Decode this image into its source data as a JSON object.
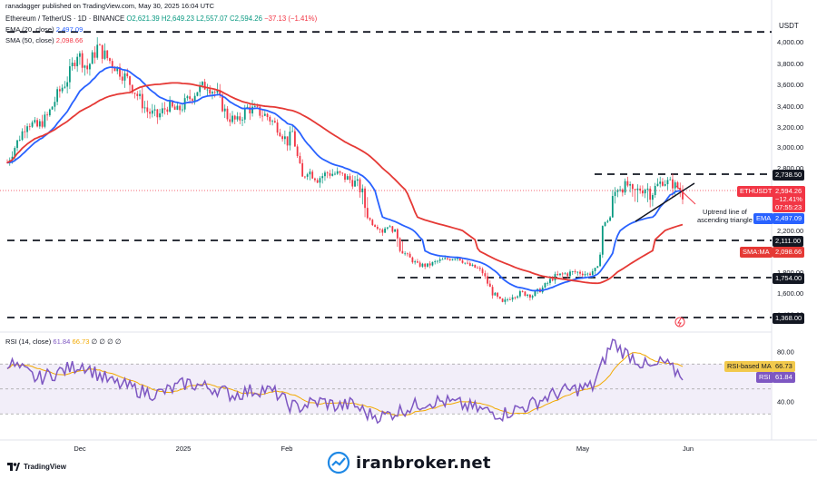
{
  "header": {
    "published": "ranadagger published on TradingView.com, May 30, 2025 16:04 UTC",
    "symbol": "Ethereum / TetherUS · 1D · BINANCE",
    "ohlc": {
      "o": "O2,621.39",
      "h": "H2,649.23",
      "l": "L2,557.07",
      "c": "C2,594.26",
      "chg": "−37.13 (−1.41%)"
    },
    "ema_label": "EMA (20, close)",
    "ema_value": "2,497.09",
    "sma_label": "SMA (50, close)",
    "sma_value": "2,098.66",
    "rsi_label": "RSI (14, close)",
    "rsi_value": "61.84",
    "rsi_ma_value": "66.73",
    "rsi_extra": "∅ ∅ ∅ ∅"
  },
  "axis": {
    "currency": "USDT",
    "price_ticks": [
      "4,000.00",
      "3,800.00",
      "3,600.00",
      "3,400.00",
      "3,200.00",
      "3,000.00",
      "2,800.00",
      "2,200.00",
      "1,800.00",
      "1,600.00",
      "1,400.00"
    ],
    "rsi_ticks": [
      "80.00",
      "40.00"
    ],
    "time_labels": [
      "Dec",
      "2025",
      "Feb",
      "May",
      "Jun"
    ]
  },
  "tags": {
    "level_2738": "2,738.50",
    "symbol_tag": "ETHUSDT",
    "last_price": "2,594.26",
    "last_pct": "−12.41%",
    "countdown": "07:55:23",
    "ema_tag": "EMA",
    "ema_val": "2,497.09",
    "level_2111": "2,111.00",
    "sma_tag": "SMA:MA",
    "sma_val": "2,098.66",
    "level_1754": "1,754.00",
    "level_1368": "1,368.00",
    "rsi_ma_tag": "RSI-based MA",
    "rsi_ma_val": "66.73",
    "rsi_tag": "RSI",
    "rsi_val": "61.84"
  },
  "annotation": {
    "line1": "Uptrend line of",
    "line2": "ascending triangle"
  },
  "footer": {
    "tradingview": "TradingView",
    "brand": "iranbroker.net"
  },
  "colors": {
    "up": "#089981",
    "down": "#f23645",
    "ema": "#2962ff",
    "sma": "#e53935",
    "rsi": "#7e57c2",
    "rsi_ma": "#f2a900"
  },
  "chart_data": {
    "type": "candlestick",
    "title": "Ethereum / TetherUS · 1D · BINANCE",
    "ylim": [
      1368,
      4100
    ],
    "horizontal_levels": [
      4090,
      2738.5,
      2111,
      1754,
      1368
    ],
    "price_path": [
      [
        0,
        2850
      ],
      [
        4,
        3050
      ],
      [
        8,
        3250
      ],
      [
        12,
        3200
      ],
      [
        16,
        3300
      ],
      [
        20,
        3500
      ],
      [
        24,
        3650
      ],
      [
        28,
        3900
      ],
      [
        32,
        3750
      ],
      [
        36,
        3950
      ],
      [
        40,
        3850
      ],
      [
        44,
        3750
      ],
      [
        48,
        3650
      ],
      [
        52,
        3500
      ],
      [
        56,
        3350
      ],
      [
        60,
        3300
      ],
      [
        64,
        3400
      ],
      [
        68,
        3350
      ],
      [
        72,
        3450
      ],
      [
        76,
        3550
      ],
      [
        80,
        3600
      ],
      [
        84,
        3500
      ],
      [
        88,
        3300
      ],
      [
        92,
        3250
      ],
      [
        96,
        3380
      ],
      [
        100,
        3350
      ],
      [
        104,
        3300
      ],
      [
        108,
        3200
      ],
      [
        112,
        3050
      ],
      [
        114,
        3150
      ],
      [
        116,
        2900
      ],
      [
        118,
        2700
      ],
      [
        120,
        2780
      ],
      [
        124,
        2700
      ],
      [
        128,
        2750
      ],
      [
        132,
        2740
      ],
      [
        136,
        2700
      ],
      [
        140,
        2650
      ],
      [
        144,
        2500
      ],
      [
        146,
        2350
      ],
      [
        150,
        2200
      ],
      [
        152,
        2300
      ],
      [
        156,
        2150
      ],
      [
        160,
        2020
      ],
      [
        164,
        1900
      ],
      [
        168,
        1890
      ],
      [
        172,
        1950
      ],
      [
        176,
        1980
      ],
      [
        180,
        2010
      ],
      [
        184,
        1900
      ],
      [
        188,
        1850
      ],
      [
        190,
        1800
      ],
      [
        194,
        1600
      ],
      [
        196,
        1550
      ],
      [
        198,
        1500
      ],
      [
        202,
        1580
      ],
      [
        206,
        1600
      ],
      [
        210,
        1580
      ],
      [
        214,
        1650
      ],
      [
        218,
        1750
      ],
      [
        222,
        1780
      ],
      [
        226,
        1800
      ],
      [
        230,
        1800
      ],
      [
        232,
        1780
      ],
      [
        236,
        1850
      ],
      [
        238,
        2300
      ],
      [
        242,
        2550
      ],
      [
        244,
        2620
      ],
      [
        248,
        2640
      ],
      [
        250,
        2570
      ],
      [
        254,
        2620
      ],
      [
        258,
        2600
      ],
      [
        262,
        2680
      ],
      [
        266,
        2650
      ],
      [
        270,
        2594
      ]
    ],
    "rsi": [
      [
        0,
        72
      ],
      [
        6,
        65
      ],
      [
        12,
        58
      ],
      [
        18,
        62
      ],
      [
        24,
        66
      ],
      [
        30,
        70
      ],
      [
        36,
        62
      ],
      [
        42,
        55
      ],
      [
        48,
        52
      ],
      [
        54,
        48
      ],
      [
        60,
        46
      ],
      [
        66,
        50
      ],
      [
        72,
        55
      ],
      [
        78,
        52
      ],
      [
        84,
        50
      ],
      [
        90,
        45
      ],
      [
        96,
        48
      ],
      [
        102,
        50
      ],
      [
        108,
        46
      ],
      [
        112,
        38
      ],
      [
        116,
        35
      ],
      [
        120,
        38
      ],
      [
        126,
        40
      ],
      [
        132,
        36
      ],
      [
        138,
        38
      ],
      [
        144,
        30
      ],
      [
        150,
        28
      ],
      [
        156,
        32
      ],
      [
        162,
        36
      ],
      [
        168,
        40
      ],
      [
        174,
        40
      ],
      [
        180,
        38
      ],
      [
        186,
        35
      ],
      [
        192,
        32
      ],
      [
        198,
        30
      ],
      [
        204,
        34
      ],
      [
        210,
        38
      ],
      [
        216,
        44
      ],
      [
        222,
        48
      ],
      [
        228,
        50
      ],
      [
        234,
        52
      ],
      [
        238,
        70
      ],
      [
        242,
        88
      ],
      [
        246,
        80
      ],
      [
        250,
        76
      ],
      [
        254,
        70
      ],
      [
        258,
        66
      ],
      [
        262,
        72
      ],
      [
        266,
        65
      ],
      [
        270,
        61.84
      ]
    ]
  }
}
